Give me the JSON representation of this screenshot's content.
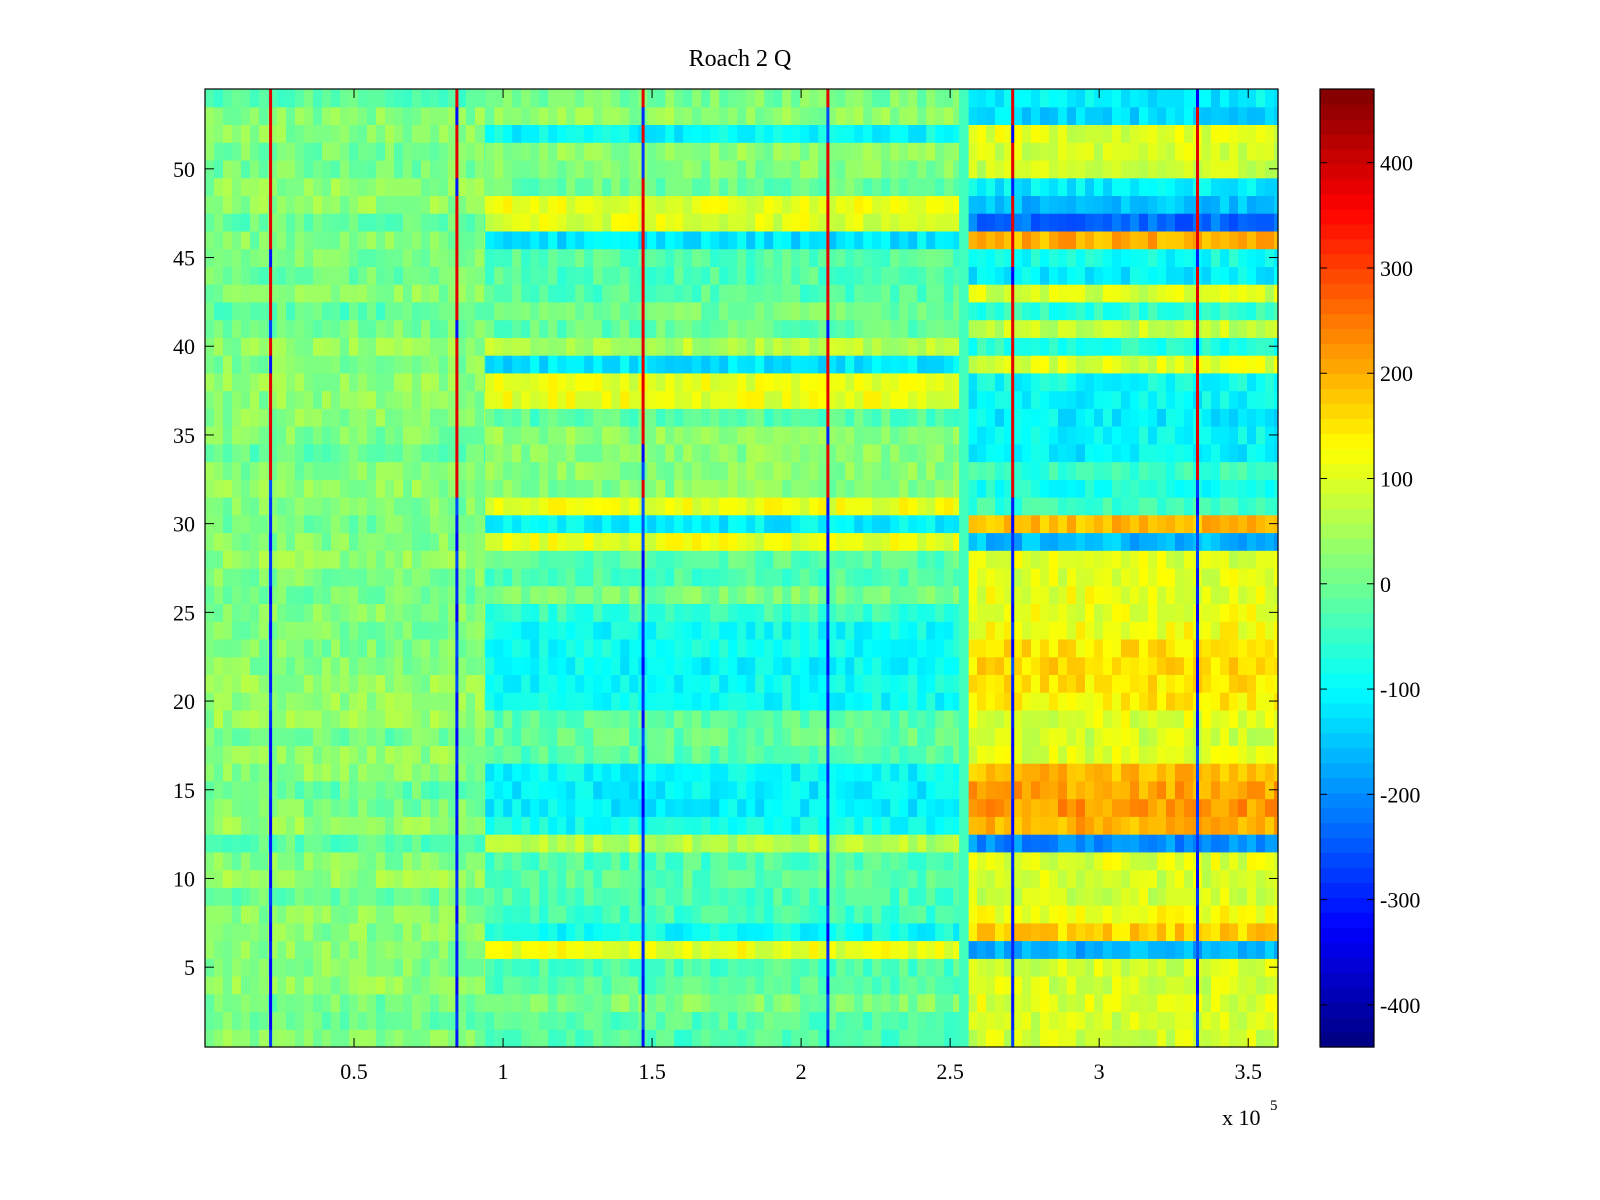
{
  "chart_data": {
    "type": "heatmap",
    "title": "Roach 2 Q",
    "xlabel": "",
    "ylabel": "",
    "colormap": "jet",
    "x_scale_label": "x 10",
    "x_scale_exponent": "5",
    "xlim": [
      0,
      3.6
    ],
    "ylim": [
      0.5,
      54.5
    ],
    "clim": [
      -440,
      470
    ],
    "x_ticks": [
      0.5,
      1,
      1.5,
      2,
      2.5,
      3,
      3.5
    ],
    "x_tick_labels": [
      "0.5",
      "1",
      "1.5",
      "2",
      "2.5",
      "3",
      "3.5"
    ],
    "y_ticks": [
      5,
      10,
      15,
      20,
      25,
      30,
      35,
      40,
      45,
      50
    ],
    "y_tick_labels": [
      "5",
      "10",
      "15",
      "20",
      "25",
      "30",
      "35",
      "40",
      "45",
      "50"
    ],
    "colorbar_ticks": [
      -400,
      -300,
      -200,
      -100,
      0,
      100,
      200,
      300,
      400
    ],
    "colorbar_tick_labels": [
      "-400",
      "-300",
      "-200",
      "-100",
      "0",
      "100",
      "200",
      "300",
      "400"
    ],
    "segments": [
      {
        "name": "segment-1",
        "x_start": 0.0,
        "x_end": 0.94,
        "base": 10
      },
      {
        "name": "segment-2",
        "x_start": 0.94,
        "x_end": 2.53,
        "base": 0
      },
      {
        "name": "segment-3",
        "x_start": 2.56,
        "x_end": 3.6,
        "base": 60
      }
    ],
    "row_values": {
      "segment-2": {
        "5": -30,
        "6": 110,
        "7": -90,
        "8": -40,
        "9": -30,
        "10": -20,
        "11": -30,
        "12": 60,
        "13": -90,
        "14": -110,
        "15": -110,
        "16": -100,
        "17": -20,
        "18": -10,
        "19": -20,
        "20": -90,
        "21": -90,
        "22": -100,
        "23": -90,
        "24": -90,
        "25": -50,
        "26": 10,
        "27": -30,
        "28": -20,
        "29": 110,
        "30": -110,
        "31": 110,
        "32": 20,
        "37": 110,
        "38": 110,
        "39": -120,
        "40": 60,
        "46": -120,
        "47": 100,
        "48": 110,
        "52": -100
      },
      "segment-3": {
        "1": 90,
        "2": 90,
        "3": 100,
        "4": 90,
        "5": 90,
        "6": -170,
        "7": 170,
        "8": 120,
        "9": 90,
        "10": 90,
        "11": 100,
        "12": -200,
        "13": 200,
        "14": 220,
        "15": 210,
        "16": 190,
        "17": 100,
        "18": 90,
        "19": 100,
        "20": 140,
        "21": 150,
        "22": 160,
        "23": 150,
        "24": 120,
        "25": 110,
        "26": 110,
        "27": 100,
        "28": 100,
        "29": -160,
        "30": 190,
        "31": -50,
        "32": -80,
        "33": -50,
        "34": -110,
        "35": -100,
        "36": -110,
        "37": -100,
        "38": -90,
        "39": 100,
        "40": -70,
        "41": 80,
        "42": -60,
        "43": 90,
        "44": -110,
        "45": -90,
        "46": 200,
        "47": -230,
        "48": -160,
        "49": -110,
        "50": 80,
        "51": 90,
        "52": 100,
        "53": -130,
        "54": -110
      }
    },
    "vertical_lines": [
      {
        "x": 0.22,
        "hot_rows_from": 32
      },
      {
        "x": 0.845,
        "hot_rows_from": 32
      },
      {
        "x": 1.47,
        "hot_rows_from": 32
      },
      {
        "x": 2.09,
        "hot_rows_from": 32
      },
      {
        "x": 2.71,
        "hot_rows_from": 32
      },
      {
        "x": 3.33,
        "hot_rows_from": 32
      }
    ]
  }
}
